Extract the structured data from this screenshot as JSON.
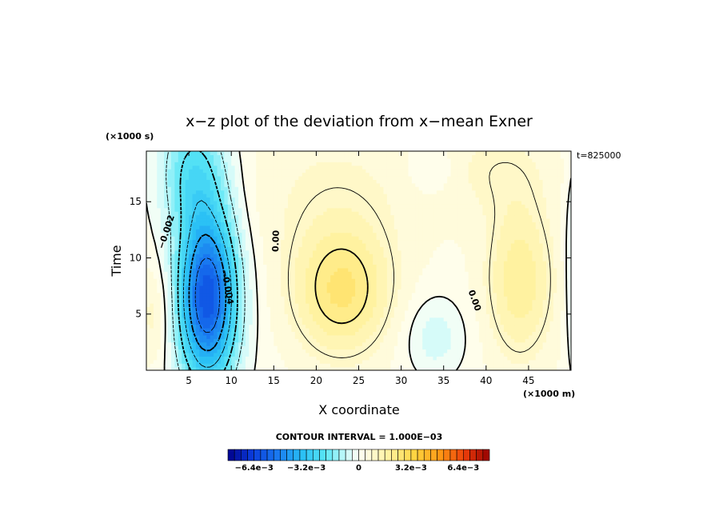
{
  "chart_data": {
    "type": "heatmap",
    "title": "x−z plot of the deviation from x−mean Exner",
    "xlabel": "X coordinate",
    "ylabel": "Time",
    "x_unit": "(×1000 m)",
    "y_unit": "(×1000 s)",
    "annotation": "t=825000",
    "xlim": [
      0,
      50
    ],
    "ylim": [
      0,
      19.5
    ],
    "x_ticks": [
      5,
      10,
      15,
      20,
      25,
      30,
      35,
      40,
      45
    ],
    "y_ticks": [
      5,
      10,
      15
    ],
    "contour_interval": "CONTOUR INTERVAL = 1.000E−03",
    "contour_labels": [
      {
        "text": "−0.002",
        "x": 2.4,
        "y": 12.3,
        "angle": -72
      },
      {
        "text": "−0.004",
        "x": 9.5,
        "y": 7.4,
        "angle": 80
      },
      {
        "text": "0.00",
        "x": 15.3,
        "y": 11.5,
        "angle": -88
      },
      {
        "text": "0.00",
        "x": 38.6,
        "y": 6.2,
        "angle": 70
      }
    ],
    "colorbar": {
      "min": -0.008,
      "max": 0.008,
      "tick_labels": [
        "−6.4e−3",
        "−3.2e−3",
        "0",
        "3.2e−3",
        "6.4e−3"
      ],
      "tick_values": [
        -0.0064,
        -0.0032,
        0,
        0.0032,
        0.0064
      ]
    },
    "features": [
      {
        "name": "negative core",
        "x": 7.2,
        "y": 6.5,
        "min_value": -0.0062
      },
      {
        "name": "positive region",
        "x": 23,
        "y": 7,
        "max_value": 0.0022
      },
      {
        "name": "positive region",
        "x": 44,
        "y": 8,
        "max_value": 0.0017
      },
      {
        "name": "weak negative lobe",
        "x": 34,
        "y": 3,
        "min_value": -0.0009
      },
      {
        "name": "weak negative lobe",
        "x": 33.5,
        "y": 18,
        "min_value": -0.0006
      }
    ]
  }
}
